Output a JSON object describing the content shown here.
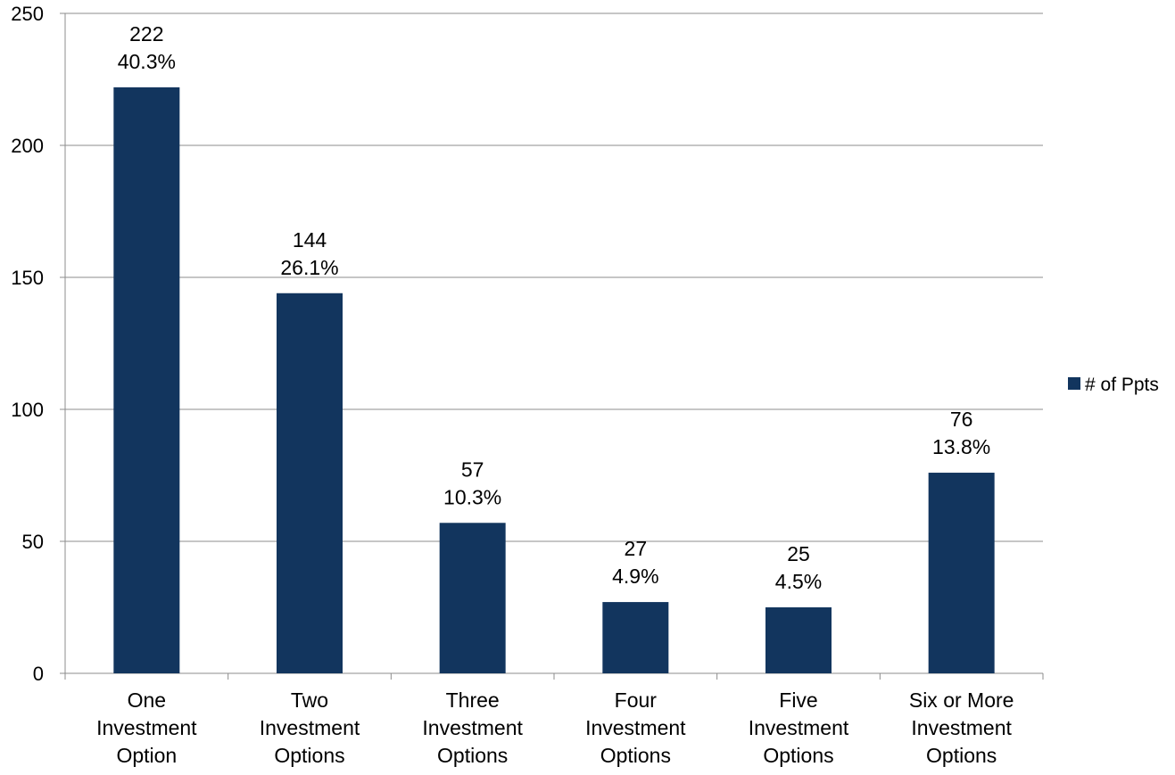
{
  "chart_data": {
    "type": "bar",
    "title": "",
    "xlabel": "",
    "ylabel": "",
    "ylim": [
      0,
      250
    ],
    "yticks": [
      0,
      50,
      100,
      150,
      200,
      250
    ],
    "grid": true,
    "legend_position": "right",
    "categories": [
      [
        "One",
        "Investment",
        "Option"
      ],
      [
        "Two",
        "Investment",
        "Options"
      ],
      [
        "Three",
        "Investment",
        "Options"
      ],
      [
        "Four",
        "Investment",
        "Options"
      ],
      [
        "Five",
        "Investment",
        "Options"
      ],
      [
        "Six or More",
        "Investment",
        "Options"
      ]
    ],
    "series": [
      {
        "name": "# of Ppts",
        "color": "#12355e",
        "values": [
          222,
          144,
          57,
          27,
          25,
          76
        ],
        "percent_labels": [
          "40.3%",
          "26.1%",
          "10.3%",
          "4.9%",
          "4.5%",
          "13.8%"
        ]
      }
    ]
  }
}
